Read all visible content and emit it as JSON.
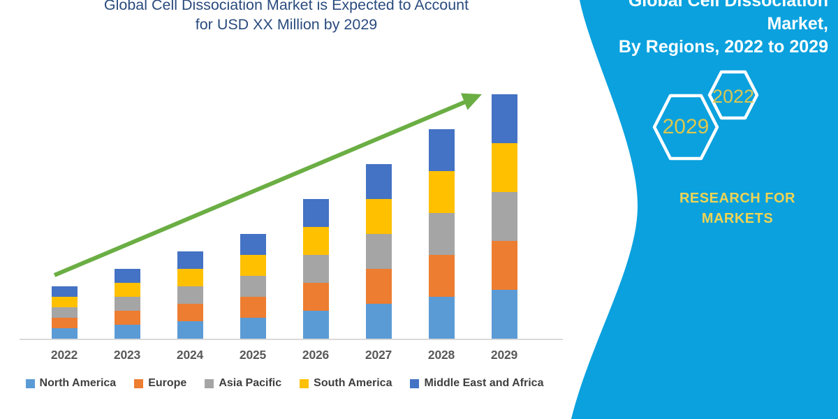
{
  "header": {
    "title_line1": "Global Cell Dissociation Market is Expected to Account",
    "title_line2": "for USD XX Million by 2029"
  },
  "panel": {
    "title_line1": "Global Cell Dissociation Market,",
    "title_line2": "By Regions, 2022 to 2029",
    "hexagon_back_year": "2022",
    "hexagon_front_year": "2029",
    "brand": "RESEARCH FOR MARKETS"
  },
  "colors": {
    "panel_background": "#0AA1DE",
    "panel_title_text": "#FFFFFF",
    "hexagon_outline": "#FFFFFF",
    "hexagon_year_text": "#DCC74E",
    "brand_text": "#EFD454",
    "chart_title_text": "#2A4B7E",
    "trend_arrow": "#6BAE44",
    "axis_label_text": "#595959",
    "legend_text": "#3F3F3F",
    "axis_line": "#DADADA"
  },
  "chart_data": {
    "type": "bar",
    "stacked": true,
    "title": "Global Cell Dissociation Market is Expected to Account for USD XX Million by 2029",
    "categories": [
      "2022",
      "2023",
      "2024",
      "2025",
      "2026",
      "2027",
      "2028",
      "2029"
    ],
    "series": [
      {
        "name": "North America",
        "color": "#5B9BD5",
        "values": [
          15,
          20,
          25,
          30,
          40,
          50,
          60,
          70
        ]
      },
      {
        "name": "Europe",
        "color": "#ED7D31",
        "values": [
          15,
          20,
          25,
          30,
          40,
          50,
          60,
          70
        ]
      },
      {
        "name": "Asia Pacific",
        "color": "#A5A5A5",
        "values": [
          15,
          20,
          25,
          30,
          40,
          50,
          60,
          70
        ]
      },
      {
        "name": "South America",
        "color": "#FFC000",
        "values": [
          15,
          20,
          25,
          30,
          40,
          50,
          60,
          70
        ]
      },
      {
        "name": "Middle East and Africa",
        "color": "#4472C4",
        "values": [
          15,
          20,
          25,
          30,
          40,
          50,
          60,
          70
        ]
      }
    ],
    "totals": [
      75,
      100,
      125,
      150,
      200,
      250,
      300,
      350
    ],
    "xlabel": "",
    "ylabel": "",
    "y_axis_visible": false,
    "gridlines": false,
    "legend_position": "bottom",
    "annotations": [
      "green upward trend arrow from 2022 bar to 2029 bar top"
    ]
  }
}
